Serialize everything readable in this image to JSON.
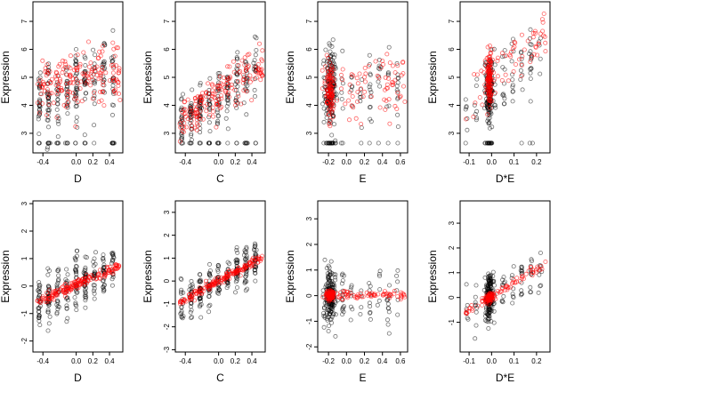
{
  "colors": {
    "black_points": "#000000",
    "red_points": "#ff0000"
  },
  "chart_data": [
    {
      "type": "scatter",
      "xlabel": "D",
      "ylabel": "Expression",
      "xticks": [
        "-0.4",
        "0.0",
        "0.2",
        "0.4"
      ],
      "xtick_values": [
        -0.4,
        0.0,
        0.2,
        0.4
      ],
      "yticks": [
        "3",
        "4",
        "5",
        "6",
        "7"
      ],
      "ytick_values": [
        3,
        4,
        5,
        6,
        7
      ],
      "xlim": [
        -0.52,
        0.56
      ],
      "ylim": [
        2.3,
        7.7
      ],
      "black_trend": [
        [
          -0.5,
          4.0
        ],
        [
          0.5,
          5.3
        ]
      ],
      "red_trend": [
        [
          -0.5,
          4.5
        ],
        [
          0.5,
          5.2
        ]
      ],
      "floor": 2.65,
      "spread": 0.9
    },
    {
      "type": "scatter",
      "xlabel": "C",
      "ylabel": "Expression",
      "xticks": [
        "-0.4",
        "0.0",
        "0.2",
        "0.4"
      ],
      "xtick_values": [
        -0.4,
        0.0,
        0.2,
        0.4
      ],
      "yticks": [
        "3",
        "4",
        "5",
        "6",
        "7"
      ],
      "ytick_values": [
        3,
        4,
        5,
        6,
        7
      ],
      "xlim": [
        -0.52,
        0.56
      ],
      "ylim": [
        2.3,
        7.7
      ],
      "black_trend": [
        [
          -0.5,
          3.2
        ],
        [
          0.5,
          5.4
        ]
      ],
      "red_trend": [
        [
          -0.5,
          3.3
        ],
        [
          0.5,
          5.5
        ]
      ],
      "floor": 2.65,
      "spread": 0.7
    },
    {
      "type": "scatter",
      "xlabel": "E",
      "ylabel": "Expression",
      "xticks": [
        "-0.2",
        "0.0",
        "0.2",
        "0.4",
        "0.6"
      ],
      "xtick_values": [
        -0.2,
        0.0,
        0.2,
        0.4,
        0.6
      ],
      "yticks": [
        "3",
        "4",
        "5",
        "6",
        "7"
      ],
      "ytick_values": [
        3,
        4,
        5,
        6,
        7
      ],
      "xlim": [
        -0.32,
        0.68
      ],
      "ylim": [
        2.3,
        7.7
      ],
      "black_trend": [
        [
          -0.25,
          4.7
        ],
        [
          0.65,
          4.7
        ]
      ],
      "red_trend": [
        [
          -0.25,
          4.5
        ],
        [
          0.65,
          4.9
        ]
      ],
      "floor": 2.65,
      "spread": 1.0
    },
    {
      "type": "scatter",
      "xlabel": "D*E",
      "ylabel": "Expression",
      "xticks": [
        "-0.1",
        "0.0",
        "0.1",
        "0.2"
      ],
      "xtick_values": [
        -0.1,
        0.0,
        0.1,
        0.2
      ],
      "yticks": [
        "3",
        "4",
        "5",
        "6",
        "7"
      ],
      "ytick_values": [
        3,
        4,
        5,
        6,
        7
      ],
      "xlim": [
        -0.14,
        0.26
      ],
      "ylim": [
        2.3,
        7.7
      ],
      "black_trend": [
        [
          -0.12,
          3.8
        ],
        [
          0.25,
          6.0
        ]
      ],
      "red_trend": [
        [
          -0.12,
          4.3
        ],
        [
          0.25,
          6.5
        ]
      ],
      "floor": 2.65,
      "spread": 0.9
    },
    {
      "type": "scatter",
      "xlabel": "D",
      "ylabel": "Expression",
      "xticks": [
        "-0.4",
        "0.0",
        "0.2",
        "0.4"
      ],
      "xtick_values": [
        -0.4,
        0.0,
        0.2,
        0.4
      ],
      "yticks": [
        "-2",
        "-1",
        "0",
        "1",
        "2",
        "3"
      ],
      "ytick_values": [
        -2,
        -1,
        0,
        1,
        2,
        3
      ],
      "xlim": [
        -0.52,
        0.56
      ],
      "ylim": [
        -2.4,
        3.1
      ],
      "black_trend": [
        [
          -0.5,
          -0.6
        ],
        [
          0.5,
          0.7
        ]
      ],
      "red_trend": [
        [
          -0.5,
          -0.6
        ],
        [
          0.5,
          0.7
        ]
      ],
      "spread": 0.7
    },
    {
      "type": "scatter",
      "xlabel": "C",
      "ylabel": "Expression",
      "xticks": [
        "-0.4",
        "0.0",
        "0.2",
        "0.4"
      ],
      "xtick_values": [
        -0.4,
        0.0,
        0.2,
        0.4
      ],
      "yticks": [
        "-3",
        "-2",
        "-1",
        "0",
        "1",
        "2",
        "3"
      ],
      "ytick_values": [
        -3,
        -2,
        -1,
        0,
        1,
        2,
        3
      ],
      "xlim": [
        -0.52,
        0.56
      ],
      "ylim": [
        -3.1,
        3.5
      ],
      "black_trend": [
        [
          -0.5,
          -1.0
        ],
        [
          0.5,
          1.0
        ]
      ],
      "red_trend": [
        [
          -0.5,
          -1.0
        ],
        [
          0.5,
          1.0
        ]
      ],
      "spread": 0.6
    },
    {
      "type": "scatter",
      "xlabel": "E",
      "ylabel": "Expression",
      "xticks": [
        "-0.2",
        "0.0",
        "0.2",
        "0.4",
        "0.6"
      ],
      "xtick_values": [
        -0.2,
        0.0,
        0.2,
        0.4,
        0.6
      ],
      "yticks": [
        "-2",
        "-1",
        "0",
        "1",
        "2",
        "3"
      ],
      "ytick_values": [
        -2,
        -1,
        0,
        1,
        2,
        3
      ],
      "xlim": [
        -0.32,
        0.68
      ],
      "ylim": [
        -2.2,
        3.7
      ],
      "black_trend": [
        [
          -0.25,
          0.0
        ],
        [
          0.65,
          0.0
        ]
      ],
      "red_trend": [
        [
          -0.25,
          0.0
        ],
        [
          0.65,
          0.0
        ]
      ],
      "spread": 0.75
    },
    {
      "type": "scatter",
      "xlabel": "D*E",
      "ylabel": "Expression",
      "xticks": [
        "-0.1",
        "0.0",
        "0.1",
        "0.2"
      ],
      "xtick_values": [
        -0.1,
        0.0,
        0.1,
        0.2
      ],
      "yticks": [
        "-1",
        "0",
        "1",
        "2",
        "3"
      ],
      "ytick_values": [
        -1,
        0,
        1,
        2,
        3
      ],
      "xlim": [
        -0.14,
        0.26
      ],
      "ylim": [
        -2.2,
        3.9
      ],
      "black_trend": [
        [
          -0.12,
          -0.6
        ],
        [
          0.25,
          1.4
        ]
      ],
      "red_trend": [
        [
          -0.12,
          -0.6
        ],
        [
          0.25,
          1.4
        ]
      ],
      "spread": 0.65
    }
  ]
}
